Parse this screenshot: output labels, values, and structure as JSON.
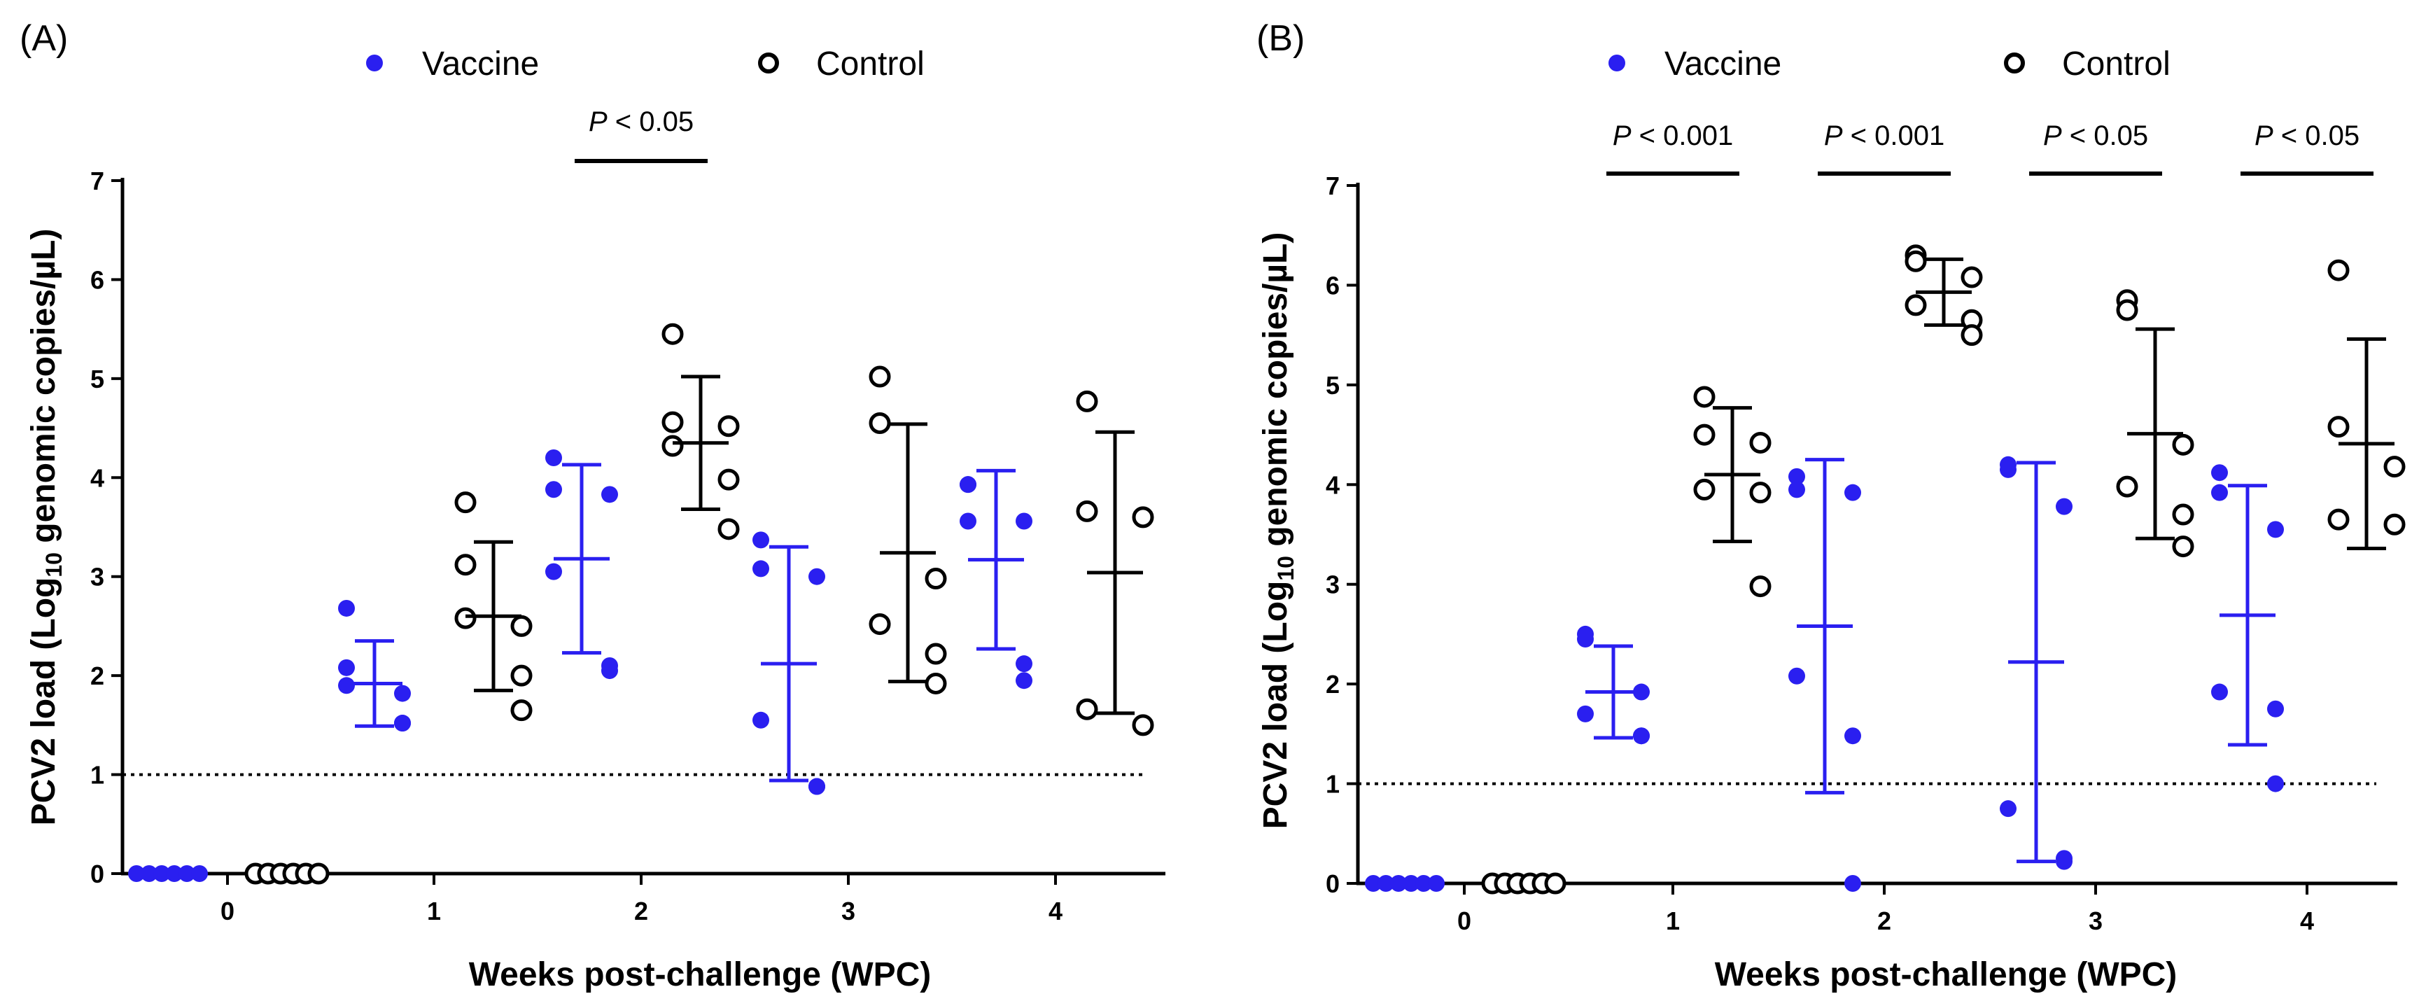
{
  "colors": {
    "vaccine": "#2a1ff0",
    "control": "#000000",
    "axis": "#000000"
  },
  "chart_data": [
    {
      "type": "scatter",
      "panel_label": "(A)",
      "legend": [
        "Vaccine",
        "Control"
      ],
      "legend_position": "top",
      "xlabel": "Weeks post-challenge (WPC)",
      "ylabel_main": "PCV2 load (Log",
      "ylabel_sub": "10",
      "ylabel_rest": " genomic copies/µL)",
      "ylim": [
        0,
        7
      ],
      "yticks": [
        "0",
        "1",
        "2",
        "3",
        "4",
        "5",
        "6",
        "7"
      ],
      "xticks": [
        "0",
        "1",
        "2",
        "3",
        "4"
      ],
      "detection_limit": 1,
      "groups": [
        {
          "week": 0,
          "series": "Vaccine",
          "points": [
            0,
            0,
            0,
            0,
            0,
            0
          ],
          "mean": 0,
          "sd": 0
        },
        {
          "week": 0,
          "series": "Control",
          "points": [
            0,
            0,
            0,
            0,
            0,
            0
          ],
          "mean": 0,
          "sd": 0
        },
        {
          "week": 1,
          "series": "Vaccine",
          "points": [
            2.68,
            2.08,
            1.82,
            1.9,
            1.52,
            1.52
          ],
          "mean": 1.92,
          "sd": 0.43
        },
        {
          "week": 1,
          "series": "Control",
          "points": [
            3.75,
            3.12,
            2.5,
            2.58,
            2.0,
            1.65
          ],
          "mean": 2.6,
          "sd": 0.75
        },
        {
          "week": 2,
          "series": "Vaccine",
          "points": [
            4.2,
            3.88,
            3.83,
            3.05,
            2.05,
            2.1
          ],
          "mean": 3.18,
          "sd": 0.95
        },
        {
          "week": 2,
          "series": "Control",
          "points": [
            5.45,
            4.56,
            4.52,
            4.32,
            3.98,
            3.48
          ],
          "mean": 4.35,
          "sd": 0.67
        },
        {
          "week": 3,
          "series": "Vaccine",
          "points": [
            3.37,
            3.08,
            3.0,
            1.55,
            0.88,
            0.88
          ],
          "mean": 2.12,
          "sd": 1.18
        },
        {
          "week": 3,
          "series": "Control",
          "points": [
            5.02,
            4.55,
            2.98,
            2.52,
            2.22,
            1.92
          ],
          "mean": 3.24,
          "sd": 1.3
        },
        {
          "week": 4,
          "series": "Vaccine",
          "points": [
            3.93,
            3.93,
            3.56,
            3.56,
            2.12,
            1.95
          ],
          "mean": 3.17,
          "sd": 0.9
        },
        {
          "week": 4,
          "series": "Control",
          "points": [
            4.77,
            3.66,
            3.6,
            1.66,
            1.5
          ],
          "mean": 3.04,
          "sd": 1.42
        }
      ],
      "significance": [
        {
          "week": 2,
          "label": "< 0.05"
        }
      ]
    },
    {
      "type": "scatter",
      "panel_label": "(B)",
      "legend": [
        "Vaccine",
        "Control"
      ],
      "legend_position": "top",
      "xlabel": "Weeks post-challenge (WPC)",
      "ylabel_main": "PCV2 load (Log",
      "ylabel_sub": "10",
      "ylabel_rest": " genomic copies/µL)",
      "ylim": [
        0,
        7
      ],
      "yticks": [
        "0",
        "1",
        "2",
        "3",
        "4",
        "5",
        "6",
        "7"
      ],
      "xticks": [
        "0",
        "1",
        "2",
        "3",
        "4"
      ],
      "detection_limit": 1,
      "groups": [
        {
          "week": 0,
          "series": "Vaccine",
          "points": [
            0,
            0,
            0,
            0,
            0,
            0
          ],
          "mean": 0,
          "sd": 0
        },
        {
          "week": 0,
          "series": "Control",
          "points": [
            0,
            0,
            0,
            0,
            0,
            0
          ],
          "mean": 0,
          "sd": 0
        },
        {
          "week": 1,
          "series": "Vaccine",
          "points": [
            2.5,
            2.45,
            1.92,
            1.7,
            1.48,
            1.48
          ],
          "mean": 1.92,
          "sd": 0.46
        },
        {
          "week": 1,
          "series": "Control",
          "points": [
            4.88,
            4.5,
            4.42,
            3.95,
            3.92,
            2.98
          ],
          "mean": 4.1,
          "sd": 0.67
        },
        {
          "week": 2,
          "series": "Vaccine",
          "points": [
            4.08,
            3.95,
            3.92,
            2.08,
            1.48,
            0.0
          ],
          "mean": 2.58,
          "sd": 1.67
        },
        {
          "week": 2,
          "series": "Control",
          "points": [
            6.3,
            6.24,
            6.08,
            5.8,
            5.65,
            5.5
          ],
          "mean": 5.93,
          "sd": 0.33
        },
        {
          "week": 3,
          "series": "Vaccine",
          "points": [
            4.2,
            4.15,
            3.78,
            0.75,
            0.25,
            0.22
          ],
          "mean": 2.22,
          "sd": 2.0
        },
        {
          "week": 3,
          "series": "Control",
          "points": [
            5.85,
            5.75,
            4.4,
            3.98,
            3.7,
            3.38
          ],
          "mean": 4.51,
          "sd": 1.05
        },
        {
          "week": 4,
          "series": "Vaccine",
          "points": [
            4.12,
            3.92,
            3.55,
            1.92,
            1.75,
            1.0
          ],
          "mean": 2.69,
          "sd": 1.3
        },
        {
          "week": 4,
          "series": "Control",
          "points": [
            6.15,
            4.58,
            4.18,
            3.65,
            3.6
          ],
          "mean": 4.41,
          "sd": 1.05
        }
      ],
      "significance": [
        {
          "week": 1,
          "label": "< 0.001"
        },
        {
          "week": 2,
          "label": "< 0.001"
        },
        {
          "week": 3,
          "label": "< 0.05"
        },
        {
          "week": 4,
          "label": "< 0.05"
        }
      ]
    }
  ]
}
